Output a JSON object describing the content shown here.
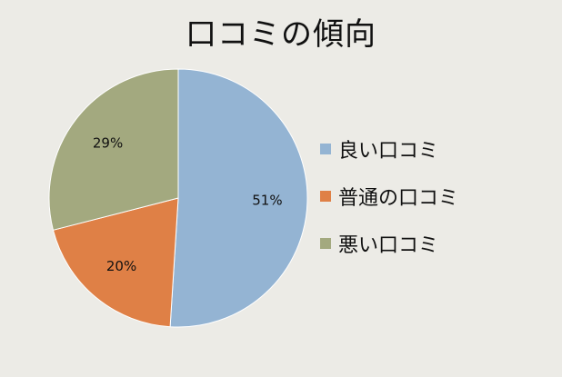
{
  "chart_data": {
    "type": "pie",
    "title": "口コミの傾向",
    "categories": [
      "良い口コミ",
      "普通の口コミ",
      "悪い口コミ"
    ],
    "values": [
      51,
      20,
      29
    ],
    "value_labels": [
      "51%",
      "20%",
      "29%"
    ],
    "colors": [
      "#94b4d3",
      "#df8046",
      "#a3a97f"
    ],
    "start_angle_deg": 0,
    "direction": "clockwise",
    "legend_position": "right"
  }
}
